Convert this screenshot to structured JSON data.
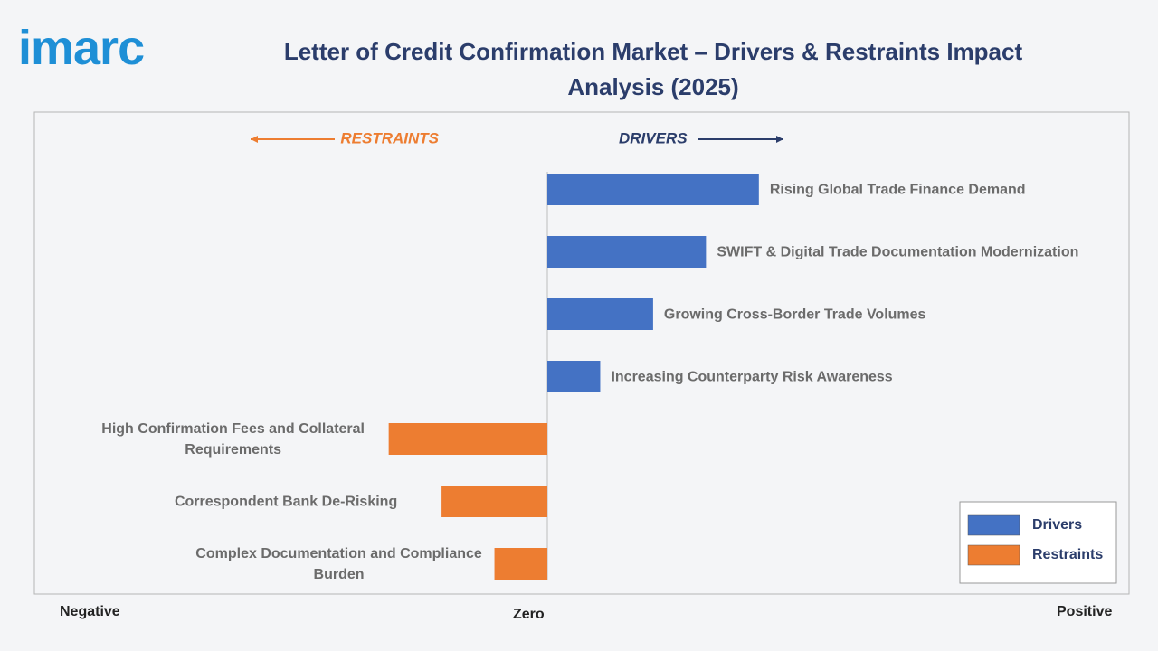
{
  "logo": "imarc",
  "chart_data": {
    "type": "diverging-bar",
    "title": "Letter of Credit Confirmation Market – Drivers & Restraints Impact Analysis (2025)",
    "annotations": {
      "restraints": "RESTRAINTS",
      "drivers": "DRIVERS"
    },
    "categories": [
      "Rising Global Trade Finance Demand",
      "SWIFT & Digital Trade Documentation Modernization",
      "Growing Cross-Border Trade Volumes",
      "Increasing Counterparty Risk Awareness",
      "High Confirmation Fees and Collateral Requirements",
      "Correspondent Bank De-Risking",
      "Complex Documentation and Compliance Burden"
    ],
    "series": [
      {
        "name": "Drivers",
        "color": "#4472c4",
        "values": [
          4,
          3,
          2,
          1,
          null,
          null,
          null
        ]
      },
      {
        "name": "Restraints",
        "color": "#ed7d31",
        "values": [
          null,
          null,
          null,
          null,
          -3,
          -2,
          -1
        ]
      }
    ],
    "xlim": [
      -9.7,
      11
    ],
    "x_labels": {
      "negative": "Negative",
      "zero": "Zero",
      "positive": "Positive"
    },
    "legend": "bottom-right"
  }
}
